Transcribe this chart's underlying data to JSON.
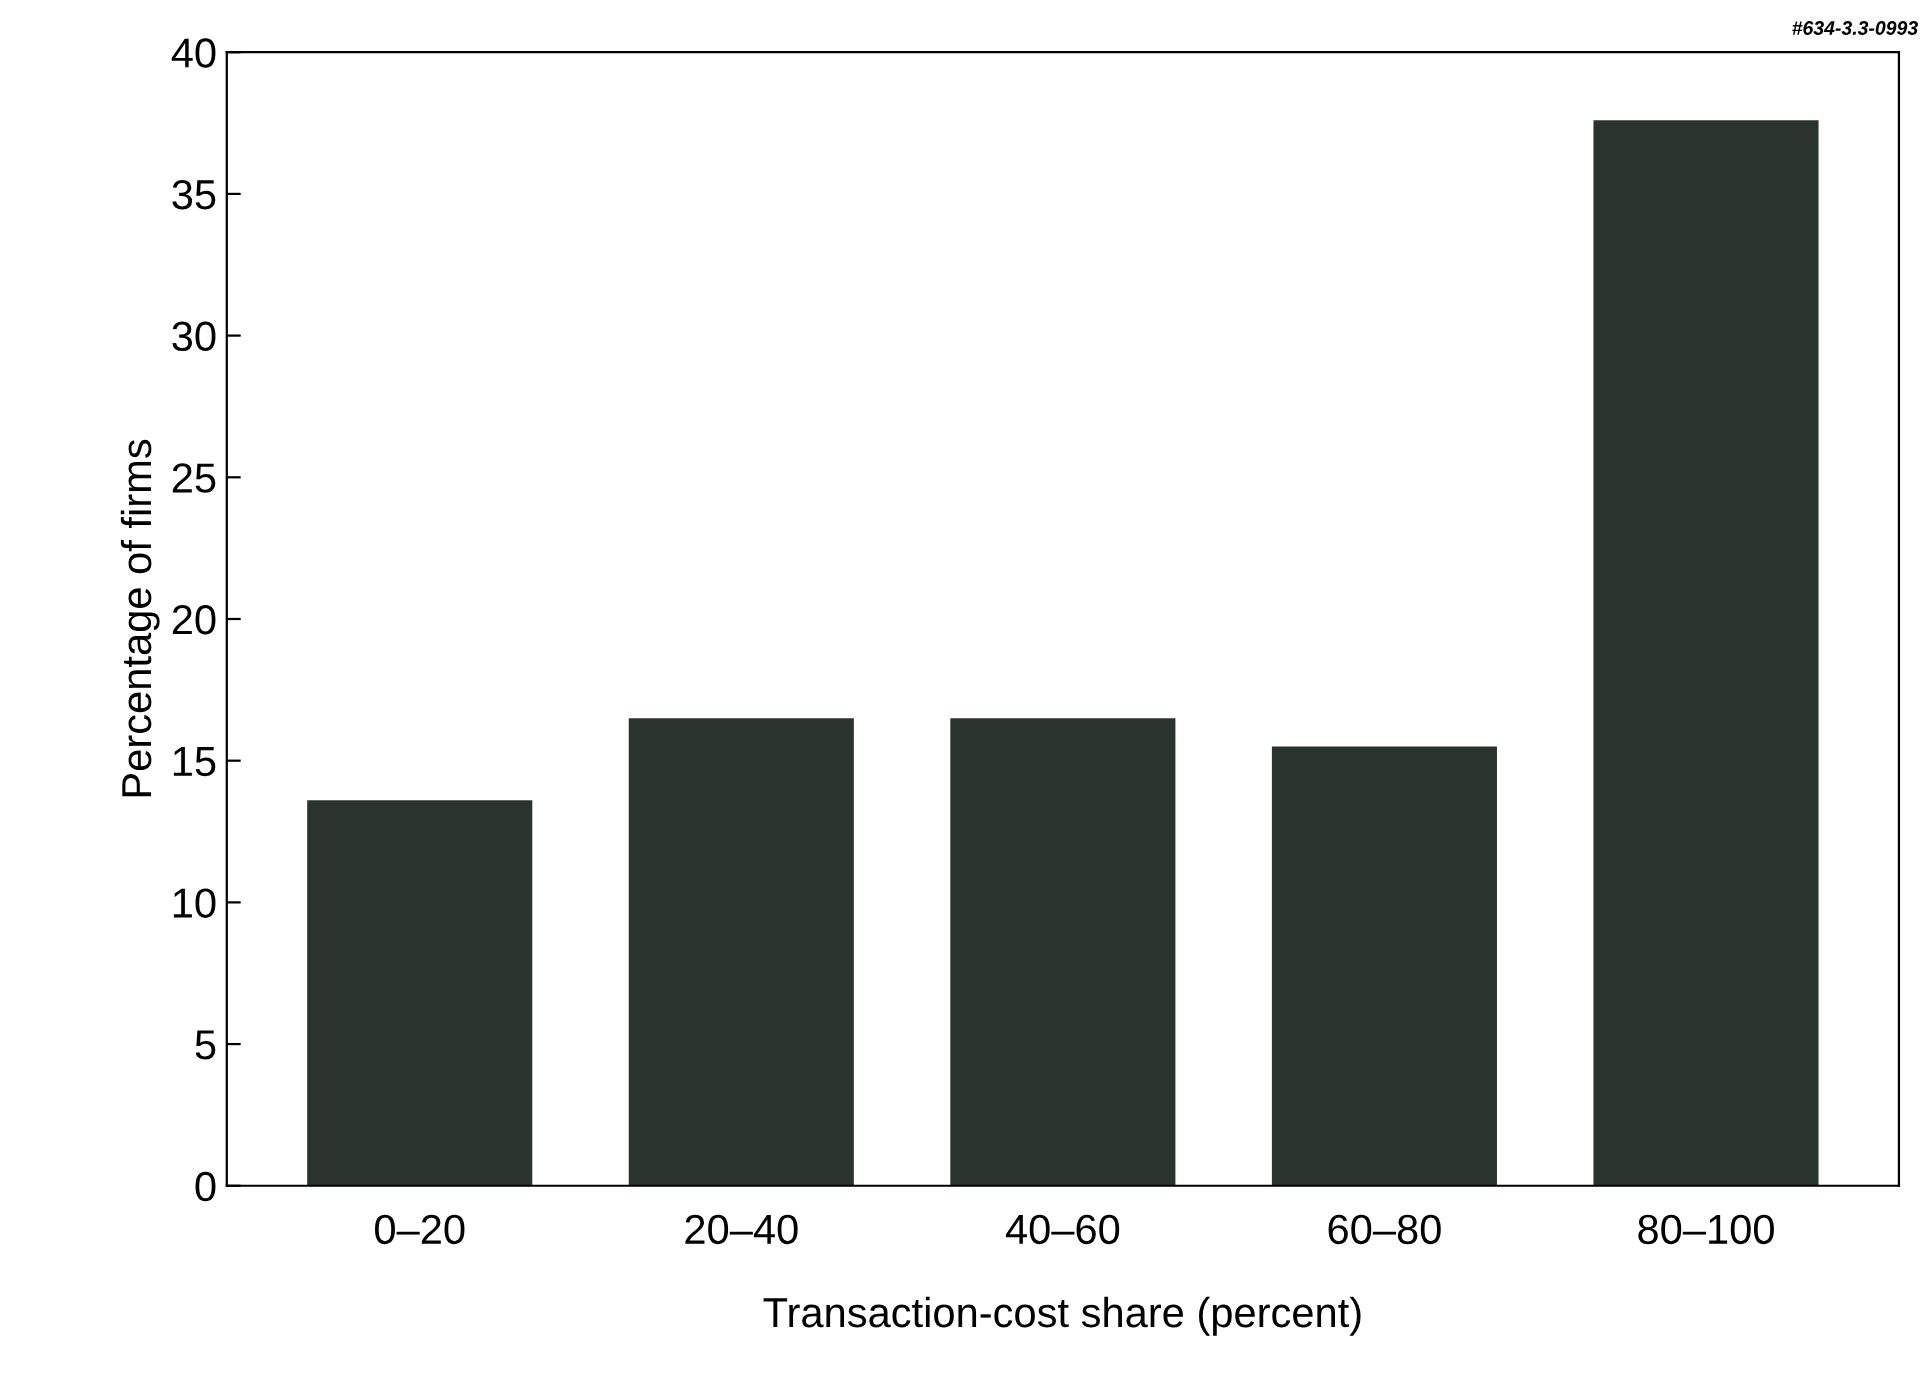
{
  "chart_data": {
    "type": "bar",
    "categories": [
      "0–20",
      "20–40",
      "40–60",
      "60–80",
      "80–100"
    ],
    "values": [
      13.6,
      16.5,
      16.5,
      15.5,
      37.6
    ],
    "color": "#2a342e",
    "xlabel": "Transaction-cost share (percent)",
    "ylabel": "Percentage of firms",
    "ylim": [
      0,
      40
    ],
    "yticks": [
      0,
      5,
      10,
      15,
      20,
      25,
      30,
      35,
      40
    ],
    "annotations": [
      "#634-3.3-0993"
    ]
  }
}
